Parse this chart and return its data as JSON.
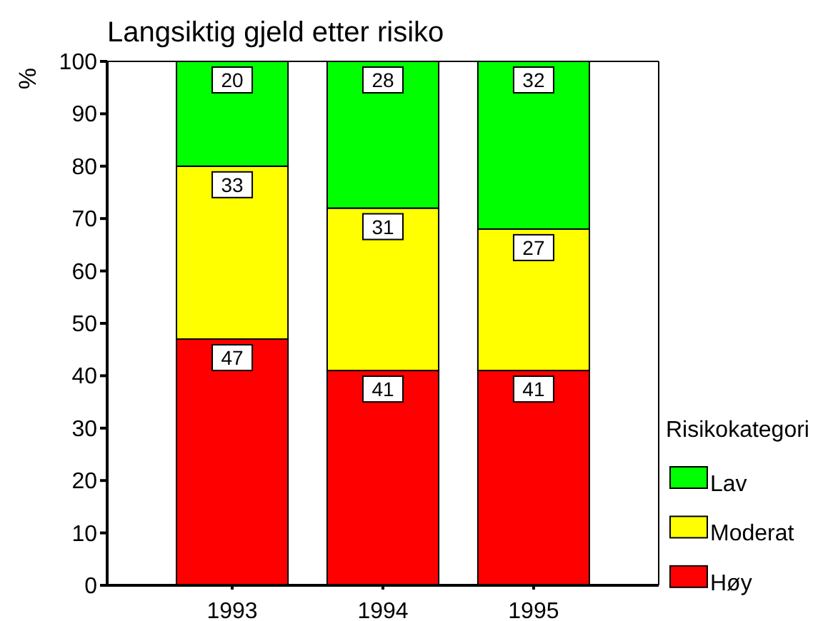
{
  "chart_data": {
    "type": "bar",
    "title": "Langsiktig gjeld etter risiko",
    "ylabel": "%",
    "legend_title": "Risikokategori",
    "categories": [
      "1993",
      "1994",
      "1995"
    ],
    "series": [
      {
        "name": "Høy",
        "color": "#ff0000",
        "values": [
          47,
          41,
          41
        ]
      },
      {
        "name": "Moderat",
        "color": "#ffff00",
        "values": [
          33,
          31,
          27
        ]
      },
      {
        "name": "Lav",
        "color": "#00ff00",
        "values": [
          20,
          28,
          32
        ]
      }
    ],
    "stacked": true,
    "data_labels": true,
    "legend": "right",
    "grid": false,
    "ylim": [
      0,
      100
    ],
    "yticks": [
      0,
      10,
      20,
      30,
      40,
      50,
      60,
      70,
      80,
      90,
      100
    ]
  }
}
